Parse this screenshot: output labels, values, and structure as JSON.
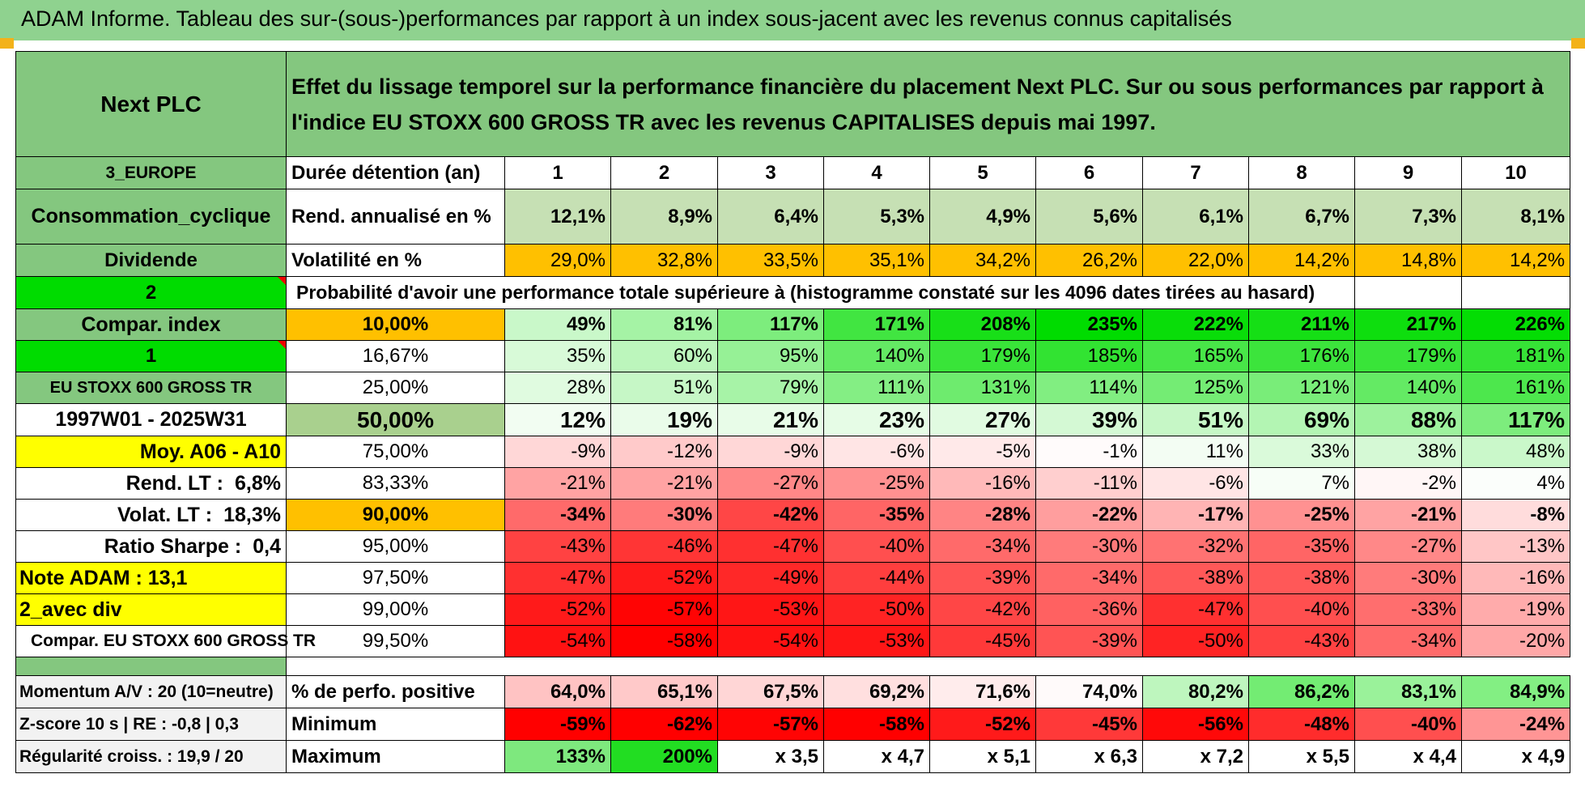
{
  "title": "ADAM Informe. Tableau des sur-(sous-)performances par rapport à un index sous-jacent avec les revenus connus capitalisés",
  "left": {
    "asset": "Next PLC",
    "region": "3_EUROPE",
    "sector": "Consommation_cyclique",
    "div_type": "Dividende",
    "val2": "2",
    "compar_index": "Compar. index",
    "val1": "1",
    "index_name": "EU STOXX 600 GROSS TR",
    "period": "1997W01 - 2025W31",
    "moy": "Moy. A06 - A10",
    "rend_lt_label": "Rend. LT :",
    "rend_lt_value": "6,8%",
    "volat_lt_label": "Volat. LT :",
    "volat_lt_value": "18,3%",
    "sharpe_label": "Ratio Sharpe :",
    "sharpe_value": "0,4",
    "note": "Note ADAM : 13,1",
    "avec_div": "2_avec div",
    "compar_full": "Compar. EU STOXX 600 GROSS TR"
  },
  "description": "Effet du lissage temporel sur la performance financière du placement Next PLC. Sur ou sous performances par rapport à l'indice EU STOXX 600 GROSS TR avec les revenus CAPITALISES depuis mai 1997.",
  "header": {
    "duration_label": "Durée détention (an)",
    "years": [
      "1",
      "2",
      "3",
      "4",
      "5",
      "6",
      "7",
      "8",
      "9",
      "10"
    ]
  },
  "rend": {
    "label": "Rend. annualisé en %",
    "values": [
      "12,1%",
      "8,9%",
      "6,4%",
      "5,3%",
      "4,9%",
      "5,6%",
      "6,1%",
      "6,7%",
      "7,3%",
      "8,1%"
    ]
  },
  "vol": {
    "label": "Volatilité en %",
    "values": [
      "29,0%",
      "32,8%",
      "33,5%",
      "35,1%",
      "34,2%",
      "26,2%",
      "22,0%",
      "14,2%",
      "14,8%",
      "14,2%"
    ]
  },
  "prob_label": "Probabilité d'avoir une performance totale supérieure à (histogramme constaté sur les 4096 dates tirées au hasard)",
  "quantile_rows": [
    {
      "pct": "10,00%",
      "values": [
        "49%",
        "81%",
        "117%",
        "171%",
        "208%",
        "235%",
        "222%",
        "211%",
        "217%",
        "226%"
      ]
    },
    {
      "pct": "16,67%",
      "values": [
        "35%",
        "60%",
        "95%",
        "140%",
        "179%",
        "185%",
        "165%",
        "176%",
        "179%",
        "181%"
      ]
    },
    {
      "pct": "25,00%",
      "values": [
        "28%",
        "51%",
        "79%",
        "111%",
        "131%",
        "114%",
        "125%",
        "121%",
        "140%",
        "161%"
      ]
    },
    {
      "pct": "50,00%",
      "values": [
        "12%",
        "19%",
        "21%",
        "23%",
        "27%",
        "39%",
        "51%",
        "69%",
        "88%",
        "117%"
      ]
    },
    {
      "pct": "75,00%",
      "values": [
        "-9%",
        "-12%",
        "-9%",
        "-6%",
        "-5%",
        "-1%",
        "11%",
        "33%",
        "38%",
        "48%"
      ]
    },
    {
      "pct": "83,33%",
      "values": [
        "-21%",
        "-21%",
        "-27%",
        "-25%",
        "-16%",
        "-11%",
        "-6%",
        "7%",
        "-2%",
        "4%"
      ]
    },
    {
      "pct": "90,00%",
      "values": [
        "-34%",
        "-30%",
        "-42%",
        "-35%",
        "-28%",
        "-22%",
        "-17%",
        "-25%",
        "-21%",
        "-8%"
      ]
    },
    {
      "pct": "95,00%",
      "values": [
        "-43%",
        "-46%",
        "-47%",
        "-40%",
        "-34%",
        "-30%",
        "-32%",
        "-35%",
        "-27%",
        "-13%"
      ]
    },
    {
      "pct": "97,50%",
      "values": [
        "-47%",
        "-52%",
        "-49%",
        "-44%",
        "-39%",
        "-34%",
        "-38%",
        "-38%",
        "-30%",
        "-16%"
      ]
    },
    {
      "pct": "99,00%",
      "values": [
        "-52%",
        "-57%",
        "-53%",
        "-50%",
        "-42%",
        "-36%",
        "-47%",
        "-40%",
        "-33%",
        "-19%"
      ]
    },
    {
      "pct": "99,50%",
      "values": [
        "-54%",
        "-58%",
        "-54%",
        "-53%",
        "-45%",
        "-39%",
        "-50%",
        "-43%",
        "-34%",
        "-20%"
      ]
    }
  ],
  "stats": {
    "momentum": "Momentum A/V : 20 (10=neutre)",
    "zscore": "Z-score 10 s | RE : -0,8 | 0,3",
    "regularite": "Régularité croiss. : 19,9 / 20",
    "pos_label": "% de perfo. positive",
    "pos_values": [
      "64,0%",
      "65,1%",
      "67,5%",
      "69,2%",
      "71,6%",
      "74,0%",
      "80,2%",
      "86,2%",
      "83,1%",
      "84,9%"
    ],
    "min_label": "Minimum",
    "min_values": [
      "-59%",
      "-62%",
      "-57%",
      "-58%",
      "-52%",
      "-45%",
      "-56%",
      "-48%",
      "-40%",
      "-24%"
    ],
    "max_label": "Maximum",
    "max_values": [
      "133%",
      "200%",
      "x 3,5",
      "x 4,7",
      "x 5,1",
      "x 6,3",
      "x 7,2",
      "x 5,5",
      "x 4,4",
      "x 4,9"
    ]
  },
  "colors": {
    "header_green": "#84c77f",
    "orange": "#ffc000",
    "yellow": "#ffff00",
    "bright_green": "#00dc00",
    "red_text": "#e0001b"
  }
}
